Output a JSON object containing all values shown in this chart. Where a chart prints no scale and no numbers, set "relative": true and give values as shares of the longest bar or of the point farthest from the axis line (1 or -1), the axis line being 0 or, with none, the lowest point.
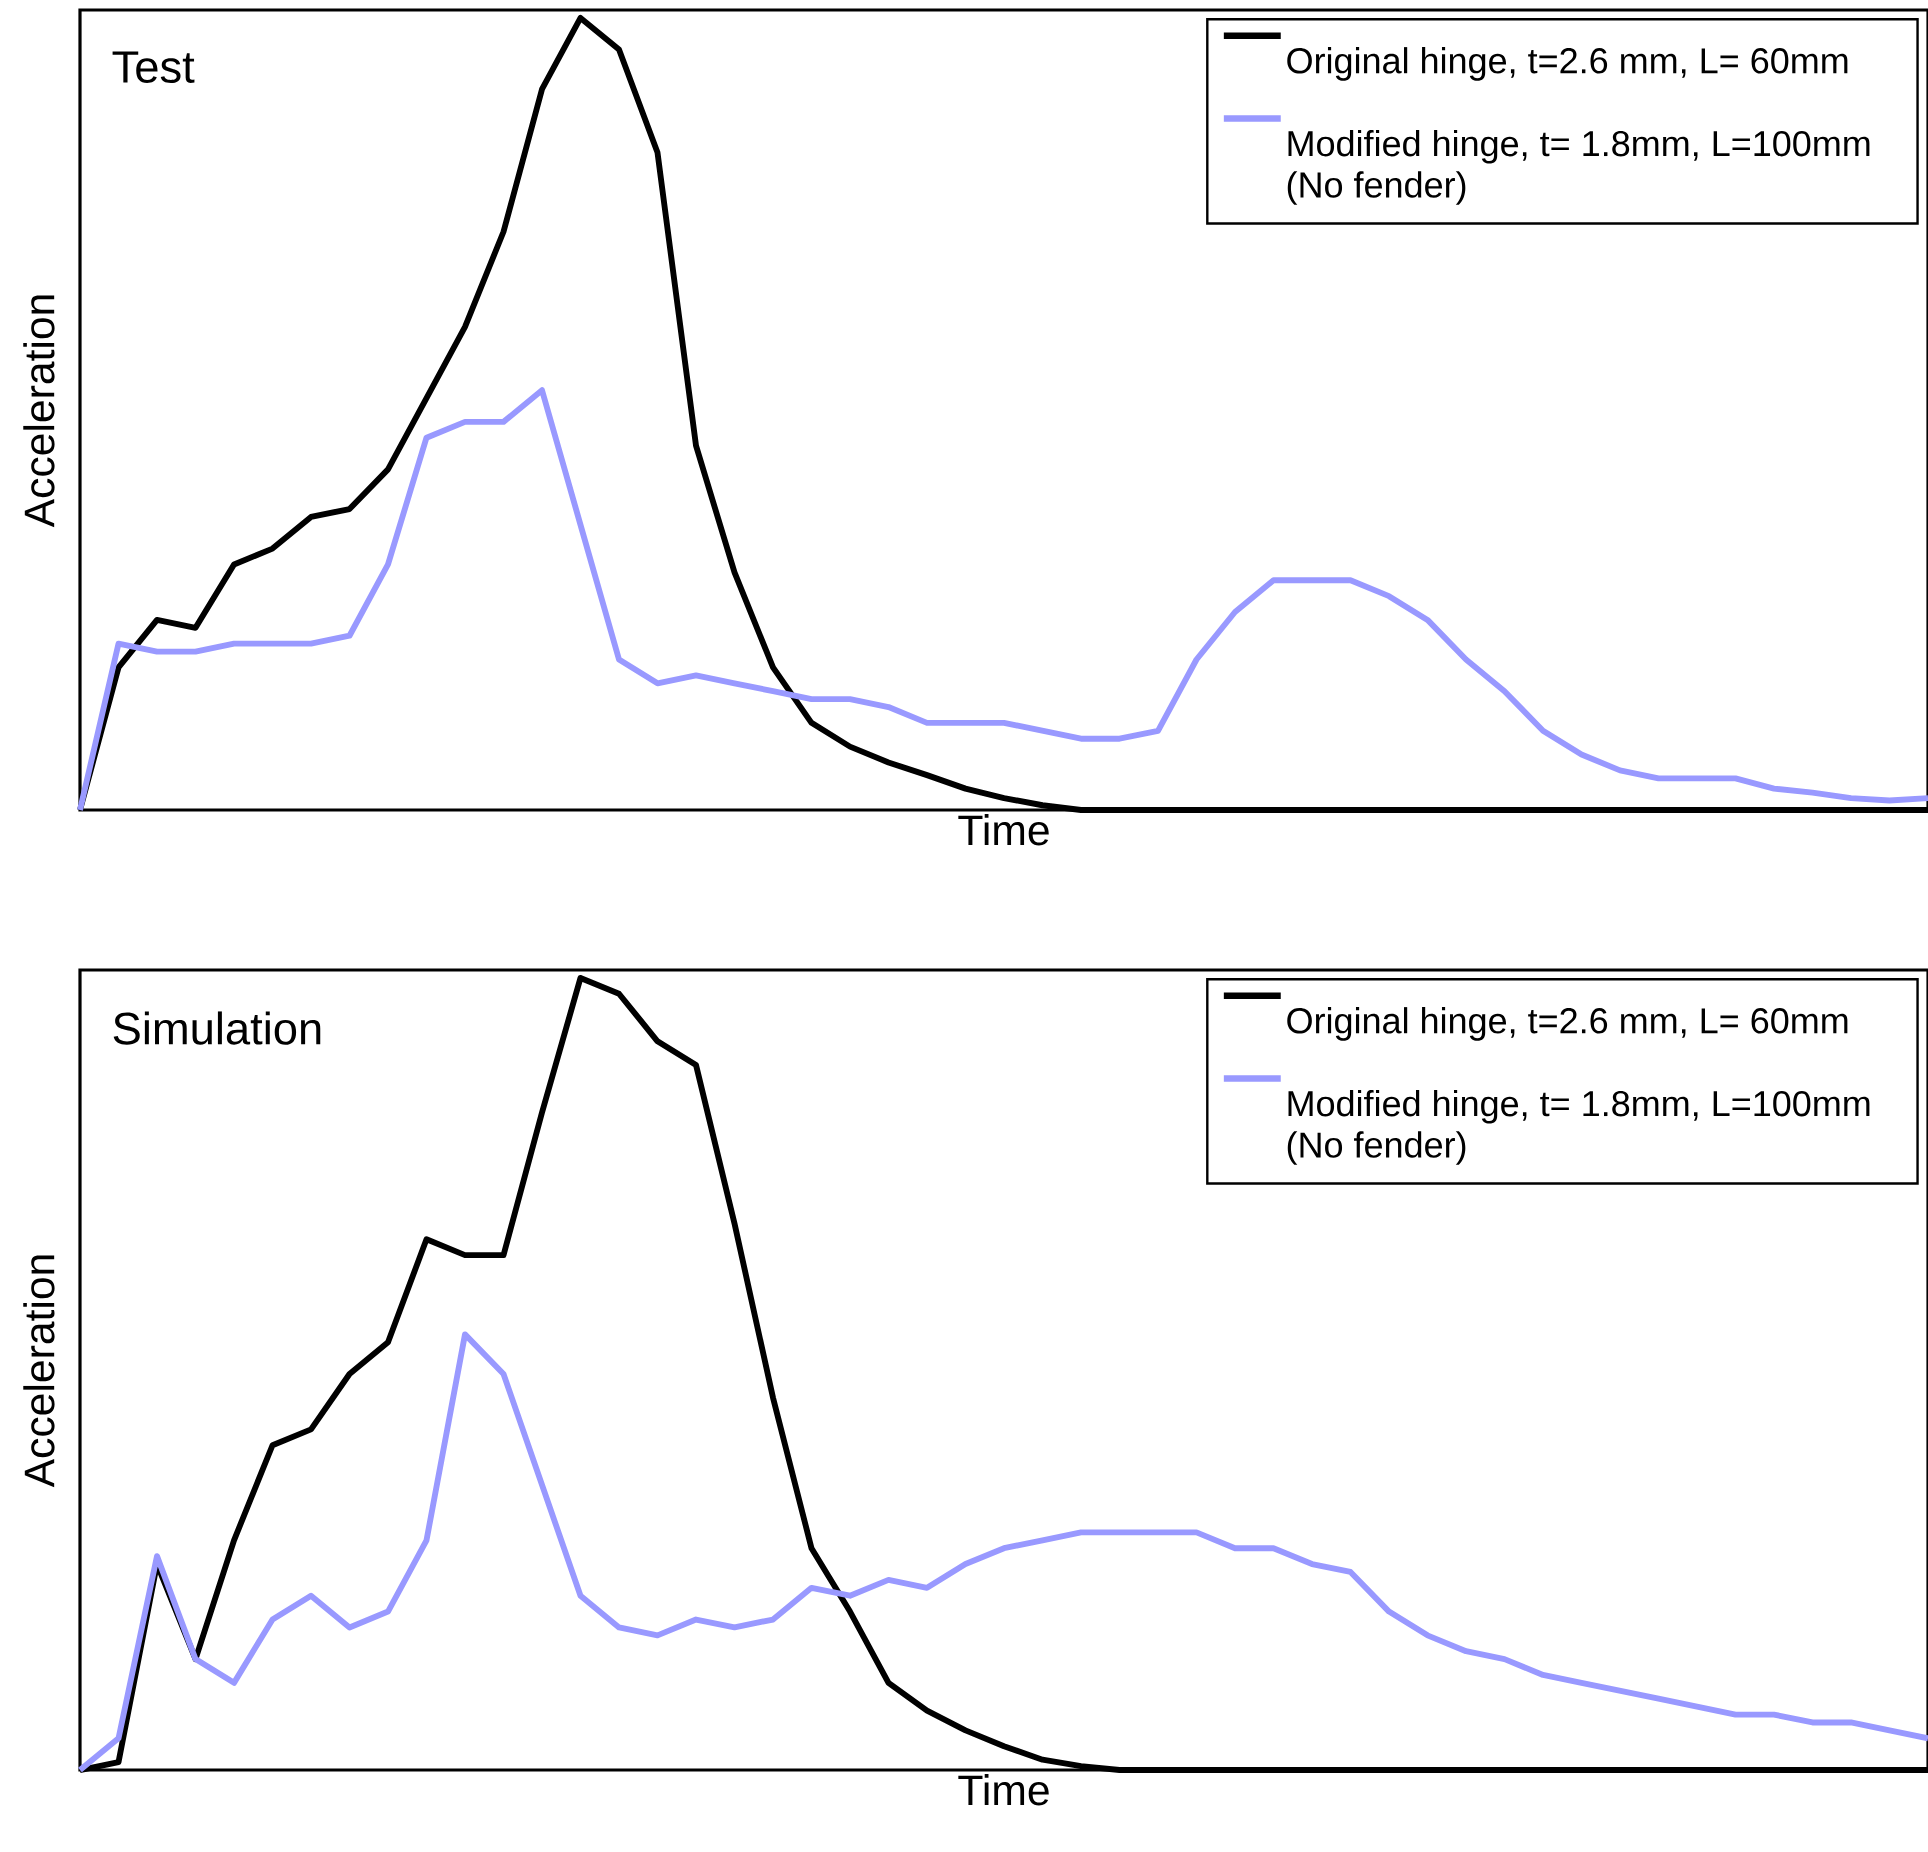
{
  "chart_data": [
    {
      "type": "line",
      "title": "Test",
      "xlabel": "Time",
      "ylabel": "Acceleration",
      "relative": true,
      "legend": "top right",
      "marker": "none",
      "line_style": "solid",
      "categories": [
        null,
        null,
        null,
        null,
        null,
        null,
        null,
        null,
        null,
        null,
        null,
        null,
        null,
        null,
        null,
        null,
        null,
        null,
        null,
        null,
        null,
        null,
        null,
        null,
        null,
        null,
        null,
        null,
        null,
        null,
        null,
        null,
        null,
        null,
        null,
        null,
        null,
        null,
        null,
        null,
        null,
        null,
        null,
        null,
        null,
        null,
        null,
        null,
        null
      ],
      "series": [
        {
          "name": "Original hinge, t=2.6 mm, L= 60mm",
          "color": "#000000",
          "values": [
            0,
            0.18,
            0.24,
            0.23,
            0.31,
            0.33,
            0.37,
            0.38,
            0.43,
            0.52,
            0.61,
            0.73,
            0.91,
            1.0,
            0.96,
            0.83,
            0.46,
            0.3,
            0.18,
            0.11,
            0.08,
            0.06,
            0.044,
            0.027,
            0.015,
            0.006,
            0,
            0,
            0,
            0,
            0,
            0,
            0,
            0,
            0,
            0,
            0,
            0,
            0,
            0,
            0,
            0,
            0,
            0,
            0,
            0,
            0,
            0,
            0
          ]
        },
        {
          "name": "Modified hinge, t= 1.8mm, L=100mm (No fender)",
          "color": "#9999ff",
          "values": [
            0,
            0.21,
            0.2,
            0.2,
            0.21,
            0.21,
            0.21,
            0.22,
            0.31,
            0.47,
            0.49,
            0.49,
            0.53,
            0.36,
            0.19,
            0.16,
            0.17,
            0.16,
            0.15,
            0.14,
            0.14,
            0.13,
            0.11,
            0.11,
            0.11,
            0.1,
            0.09,
            0.09,
            0.1,
            0.19,
            0.25,
            0.29,
            0.29,
            0.29,
            0.27,
            0.24,
            0.19,
            0.15,
            0.1,
            0.07,
            0.05,
            0.04,
            0.04,
            0.04,
            0.027,
            0.022,
            0.015,
            0.012,
            0.015
          ]
        }
      ]
    },
    {
      "type": "line",
      "title": "Simulation",
      "xlabel": "Time",
      "ylabel": "Acceleration",
      "relative": true,
      "legend": "top right",
      "marker": "none",
      "line_style": "solid",
      "categories": [
        null,
        null,
        null,
        null,
        null,
        null,
        null,
        null,
        null,
        null,
        null,
        null,
        null,
        null,
        null,
        null,
        null,
        null,
        null,
        null,
        null,
        null,
        null,
        null,
        null,
        null,
        null,
        null,
        null,
        null,
        null,
        null,
        null,
        null,
        null,
        null,
        null,
        null,
        null,
        null,
        null,
        null,
        null,
        null,
        null,
        null,
        null,
        null,
        null
      ],
      "series": [
        {
          "name": "Original hinge, t=2.6 mm, L= 60mm",
          "color": "#000000",
          "values": [
            0,
            0.01,
            0.26,
            0.14,
            0.29,
            0.41,
            0.43,
            0.5,
            0.54,
            0.67,
            0.65,
            0.65,
            0.83,
            1.0,
            0.98,
            0.92,
            0.89,
            0.69,
            0.47,
            0.28,
            0.2,
            0.11,
            0.075,
            0.05,
            0.03,
            0.013,
            0.005,
            0,
            0,
            0,
            0,
            0,
            0,
            0,
            0,
            0,
            0,
            0,
            0,
            0,
            0,
            0,
            0,
            0,
            0,
            0,
            0,
            0,
            0
          ]
        },
        {
          "name": "Modified hinge, t= 1.8mm, L=100mm (No fender)",
          "color": "#9999ff",
          "values": [
            0,
            0.04,
            0.27,
            0.14,
            0.11,
            0.19,
            0.22,
            0.18,
            0.2,
            0.29,
            0.55,
            0.5,
            0.36,
            0.22,
            0.18,
            0.17,
            0.19,
            0.18,
            0.19,
            0.23,
            0.22,
            0.24,
            0.23,
            0.26,
            0.28,
            0.29,
            0.3,
            0.3,
            0.3,
            0.3,
            0.28,
            0.28,
            0.26,
            0.25,
            0.2,
            0.17,
            0.15,
            0.14,
            0.12,
            0.11,
            0.1,
            0.09,
            0.08,
            0.07,
            0.07,
            0.06,
            0.06,
            0.05,
            0.04
          ]
        }
      ]
    }
  ]
}
